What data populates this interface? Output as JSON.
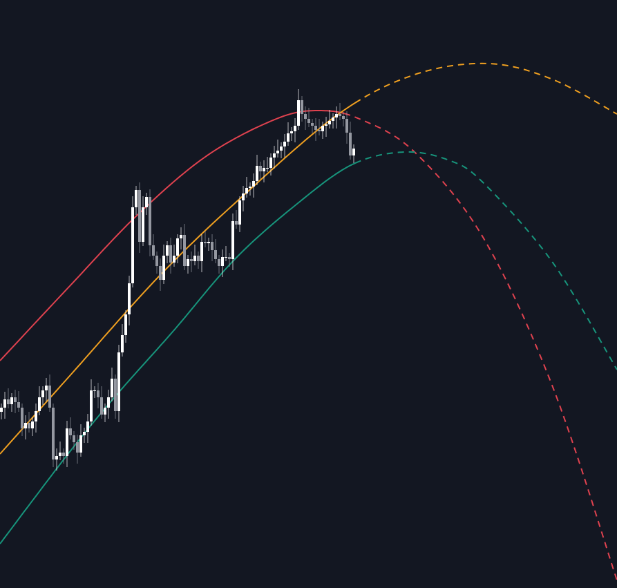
{
  "chart_data": {
    "type": "candlestick",
    "title": "",
    "xlabel": "",
    "ylabel": "",
    "grid": false,
    "legend": "none",
    "ylim": [
      0,
      85.1
    ],
    "xlim": [
      -0.4,
      178.2
    ],
    "colors": {
      "background": "#131722",
      "up_candle": "#ffffff",
      "down_candle": "#9598a1",
      "upper_curve": "#e0424f",
      "middle_curve": "#f0a020",
      "lower_curve": "#17957c"
    },
    "closes": [
      26.1,
      27.3,
      26.6,
      27.6,
      26.9,
      26.1,
      23.1,
      23.9,
      23.1,
      24.1,
      25.6,
      27.6,
      28.6,
      29.3,
      26.1,
      18.6,
      19.1,
      19.6,
      19.1,
      23.1,
      22.1,
      21.1,
      19.6,
      22.1,
      22.6,
      24.1,
      28.6,
      28.6,
      27.6,
      25.1,
      26.1,
      27.6,
      30.3,
      25.6,
      34.1,
      36.6,
      39.6,
      44.1,
      55.1,
      57.6,
      50.1,
      55.1,
      56.6,
      49.6,
      48.1,
      46.6,
      44.6,
      48.1,
      49.6,
      47.1,
      48.1,
      50.6,
      51.1,
      46.6,
      47.6,
      47.3,
      48.1,
      47.3,
      50.1,
      49.9,
      50.1,
      48.9,
      47.6,
      46.6,
      47.9,
      47.9,
      47.6,
      53.1,
      52.6,
      56.1,
      57.1,
      57.9,
      58.1,
      58.9,
      61.1,
      60.3,
      60.8,
      60.8,
      62.3,
      62.9,
      63.3,
      63.9,
      64.6,
      65.8,
      66.1,
      66.9,
      70.6,
      68.6,
      67.9,
      67.3,
      66.9,
      66.3,
      66.1,
      66.9,
      67.1,
      67.6,
      68.1,
      68.6,
      68.3,
      67.9,
      65.9,
      62.6,
      63.6
    ],
    "series": [
      {
        "key": "upper",
        "color": "#e0424f",
        "solid_until": 99.6,
        "points": [
          [
            -0.4,
            32.9
          ],
          [
            19.6,
            43.6
          ],
          [
            39.6,
            54.1
          ],
          [
            59.6,
            62.6
          ],
          [
            79.6,
            67.9
          ],
          [
            92,
            69.1
          ],
          [
            103.6,
            67.9
          ],
          [
            119.6,
            63.1
          ],
          [
            139.6,
            50.6
          ],
          [
            159.6,
            29.1
          ],
          [
            178.2,
            1.1
          ]
        ]
      },
      {
        "key": "middle",
        "color": "#f0a020",
        "solid_until": 102.6,
        "points": [
          [
            -0.4,
            19.4
          ],
          [
            19.6,
            30.6
          ],
          [
            45.6,
            45.1
          ],
          [
            69.6,
            56.6
          ],
          [
            97.6,
            68.6
          ],
          [
            119.6,
            74.3
          ],
          [
            141,
            75.9
          ],
          [
            159.6,
            73.6
          ],
          [
            178.2,
            68.6
          ]
        ]
      },
      {
        "key": "lower",
        "color": "#17957c",
        "solid_until": 102.6,
        "points": [
          [
            -0.4,
            6.4
          ],
          [
            19.6,
            19.6
          ],
          [
            33.6,
            28.1
          ],
          [
            49.6,
            37.1
          ],
          [
            67.6,
            47.6
          ],
          [
            85.6,
            55.6
          ],
          [
            101.6,
            61.3
          ],
          [
            116.6,
            63.1
          ],
          [
            129.6,
            61.9
          ],
          [
            139.6,
            58.6
          ],
          [
            159.6,
            47.1
          ],
          [
            178.2,
            31.6
          ]
        ]
      }
    ]
  }
}
